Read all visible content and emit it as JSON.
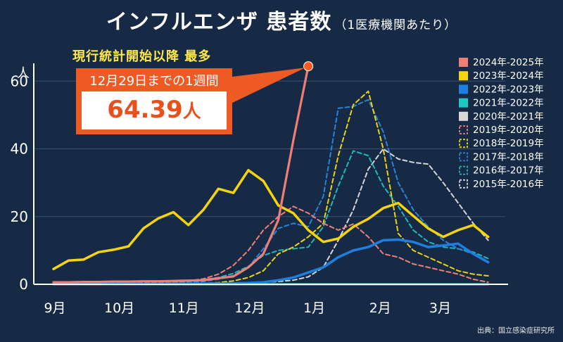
{
  "header": {
    "title": "インフルエンザ 患者数",
    "subtitle": "（1医療機関あたり）"
  },
  "axis": {
    "y_unit": "人",
    "source": "出典：国立感染症研究所"
  },
  "callout": {
    "headline": "現行統計開始以降 最多",
    "period": "12月29日までの1週間",
    "value": "64.39",
    "unit": "人"
  },
  "colors": {
    "background": "#172a45",
    "axis": "#ffffff",
    "callout_bg": "#ee5a24",
    "callout_value": "#e8501c",
    "headline": "#ffe94a"
  },
  "chart_data": {
    "type": "line",
    "title": "インフルエンザ 患者数",
    "ylabel": "人",
    "ylim": [
      0,
      64
    ],
    "yticks": [
      0,
      20,
      40,
      60
    ],
    "x_week_range": [
      0,
      30
    ],
    "x_ticks": [
      {
        "label": "9月",
        "week": 0
      },
      {
        "label": "10月",
        "week": 4.3
      },
      {
        "label": "11月",
        "week": 8.6
      },
      {
        "label": "12月",
        "week": 13
      },
      {
        "label": "1月",
        "week": 17.3
      },
      {
        "label": "2月",
        "week": 21.7
      },
      {
        "label": "3月",
        "week": 25.7
      }
    ],
    "legend_position": "right",
    "series": [
      {
        "name": "2024年-2025年",
        "color": "#ef7f76",
        "dashed": false,
        "width": 3.2,
        "values": [
          0.6,
          0.6,
          0.7,
          0.7,
          0.8,
          0.8,
          0.9,
          0.9,
          1.0,
          1.1,
          1.2,
          1.8,
          2.3,
          5.0,
          9.0,
          19.0,
          42.5,
          64.39
        ]
      },
      {
        "name": "2023年-2024年",
        "color": "#f5d40f",
        "dashed": false,
        "width": 3.5,
        "values": [
          4.5,
          7.0,
          7.3,
          9.5,
          10.2,
          11.2,
          16.5,
          19.5,
          21.3,
          17.5,
          22.0,
          28.2,
          27.0,
          33.7,
          30.5,
          23.3,
          21.0,
          16.0,
          12.5,
          13.5,
          17.0,
          19.3,
          22.5,
          24.0,
          20.2,
          16.5,
          14.0,
          16.0,
          17.5,
          14.0
        ]
      },
      {
        "name": "2022年-2023年",
        "color": "#1f7fe0",
        "dashed": false,
        "width": 3.5,
        "values": [
          0.1,
          0.1,
          0.1,
          0.1,
          0.1,
          0.1,
          0.1,
          0.1,
          0.2,
          0.2,
          0.2,
          0.2,
          0.3,
          0.4,
          0.6,
          1.2,
          2.0,
          3.5,
          5.0,
          8.0,
          10.0,
          11.0,
          13.0,
          13.2,
          12.5,
          11.0,
          11.5,
          12.0,
          9.0,
          6.5
        ]
      },
      {
        "name": "2021年-2022年",
        "color": "#20c6c0",
        "dashed": false,
        "width": 3,
        "values": [
          0.0,
          0.0,
          0.0,
          0.0,
          0.0,
          0.0,
          0.0,
          0.0,
          0.0,
          0.0,
          0.0,
          0.0,
          0.0,
          0.0,
          0.0,
          0.0,
          0.0,
          0.0,
          0.0,
          0.0,
          0.0,
          0.0,
          0.0,
          0.0,
          0.0,
          0.0,
          0.0,
          0.0,
          0.0,
          0.0
        ]
      },
      {
        "name": "2020年-2021年",
        "color": "#d8d8d8",
        "dashed": false,
        "width": 2.5,
        "values": [
          0.0,
          0.0,
          0.0,
          0.0,
          0.0,
          0.0,
          0.0,
          0.0,
          0.0,
          0.0,
          0.0,
          0.0,
          0.0,
          0.0,
          0.0,
          0.0,
          0.0,
          0.0,
          0.0,
          0.0,
          0.0,
          0.0,
          0.0,
          0.0,
          0.0,
          0.0,
          0.0,
          0.0,
          0.0,
          0.0
        ]
      },
      {
        "name": "2019年-2020年",
        "color": "#ef7f76",
        "dashed": true,
        "width": 2,
        "values": [
          0.2,
          0.2,
          0.2,
          0.3,
          0.3,
          0.4,
          0.5,
          0.6,
          0.8,
          1.0,
          1.6,
          3.0,
          5.6,
          10.0,
          16.0,
          20.0,
          23.0,
          21.0,
          18.0,
          16.0,
          17.8,
          14.0,
          9.0,
          8.0,
          6.0,
          5.0,
          4.0,
          3.0,
          1.5,
          0.6
        ]
      },
      {
        "name": "2018年-2019年",
        "color": "#e8d31a",
        "dashed": true,
        "width": 2,
        "values": [
          0.1,
          0.1,
          0.1,
          0.1,
          0.1,
          0.1,
          0.1,
          0.1,
          0.2,
          0.2,
          0.3,
          0.5,
          1.0,
          2.0,
          4.0,
          9.0,
          11.0,
          14.0,
          18.0,
          38.0,
          53.0,
          57.0,
          40.0,
          15.0,
          10.0,
          8.0,
          6.0,
          4.0,
          3.0,
          2.5
        ]
      },
      {
        "name": "2017年-2018年",
        "color": "#2a83d8",
        "dashed": true,
        "width": 2,
        "values": [
          0.1,
          0.1,
          0.1,
          0.1,
          0.2,
          0.2,
          0.2,
          0.3,
          0.3,
          0.5,
          0.8,
          1.5,
          2.6,
          5.0,
          10.5,
          16.5,
          18.0,
          17.0,
          26.0,
          52.0,
          52.5,
          54.5,
          45.0,
          30.0,
          22.0,
          17.0,
          13.0,
          10.5,
          9.0,
          6.5
        ]
      },
      {
        "name": "2016年-2017年",
        "color": "#20b8b8",
        "dashed": true,
        "width": 2,
        "values": [
          0.1,
          0.1,
          0.1,
          0.2,
          0.2,
          0.2,
          0.3,
          0.4,
          0.6,
          0.8,
          1.4,
          2.0,
          3.2,
          5.3,
          8.5,
          10.0,
          10.5,
          11.0,
          17.0,
          29.0,
          39.4,
          38.0,
          29.0,
          23.0,
          16.0,
          12.5,
          11.0,
          10.5,
          9.5,
          7.6
        ]
      },
      {
        "name": "2015年-2016年",
        "color": "#d6d6d6",
        "dashed": true,
        "width": 2,
        "values": [
          0.0,
          0.0,
          0.0,
          0.0,
          0.0,
          0.1,
          0.1,
          0.1,
          0.1,
          0.1,
          0.2,
          0.2,
          0.3,
          0.4,
          0.6,
          0.8,
          1.2,
          2.2,
          5.0,
          13.0,
          22.0,
          34.0,
          40.0,
          37.0,
          36.0,
          35.5,
          30.0,
          24.0,
          18.0,
          13.0
        ]
      }
    ]
  }
}
